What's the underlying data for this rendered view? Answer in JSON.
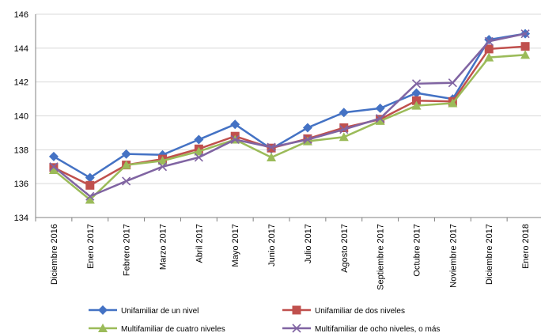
{
  "chart_data": {
    "type": "line",
    "title": "",
    "xlabel": "",
    "ylabel": "",
    "ylim": [
      134,
      146
    ],
    "yticks": [
      134,
      136,
      138,
      140,
      142,
      144,
      146
    ],
    "grid": "horizontal",
    "legend_position": "bottom",
    "categories": [
      "Diciembre 2016",
      "Enero 2017",
      "Febrero 2017",
      "Marzo 2017",
      "Abril 2017",
      "Mayo 2017",
      "Junio 2017",
      "Julio 2017",
      "Agosto 2017",
      "Septiembre 2017",
      "Octubre 2017",
      "Noviembre 2017",
      "Diciembre 2017",
      "Enero 2018"
    ],
    "series": [
      {
        "name": "Unifamiliar de un nivel",
        "color": "#4472C4",
        "marker": "diamond",
        "values": [
          137.6,
          136.35,
          137.75,
          137.7,
          138.6,
          139.5,
          138.05,
          139.3,
          140.2,
          140.45,
          141.35,
          141.0,
          144.5,
          144.85
        ]
      },
      {
        "name": "Unifamiliar de dos niveles",
        "color": "#C0504D",
        "marker": "square",
        "values": [
          136.95,
          135.9,
          137.1,
          137.45,
          138.05,
          138.8,
          138.1,
          138.65,
          139.3,
          139.8,
          140.9,
          140.85,
          143.95,
          144.1
        ]
      },
      {
        "name": "Multifamiliar de cuatro niveles",
        "color": "#9BBB59",
        "marker": "triangle",
        "values": [
          136.8,
          135.05,
          137.1,
          137.35,
          137.9,
          138.6,
          137.55,
          138.5,
          138.75,
          139.7,
          140.6,
          140.75,
          143.45,
          143.6
        ]
      },
      {
        "name": "Multifamiliar de ocho niveles, o más",
        "color": "#8064A2",
        "marker": "x",
        "values": [
          137.0,
          135.25,
          136.15,
          137.0,
          137.55,
          138.6,
          138.15,
          138.6,
          139.2,
          139.85,
          141.9,
          141.95,
          144.4,
          144.85
        ]
      }
    ]
  }
}
